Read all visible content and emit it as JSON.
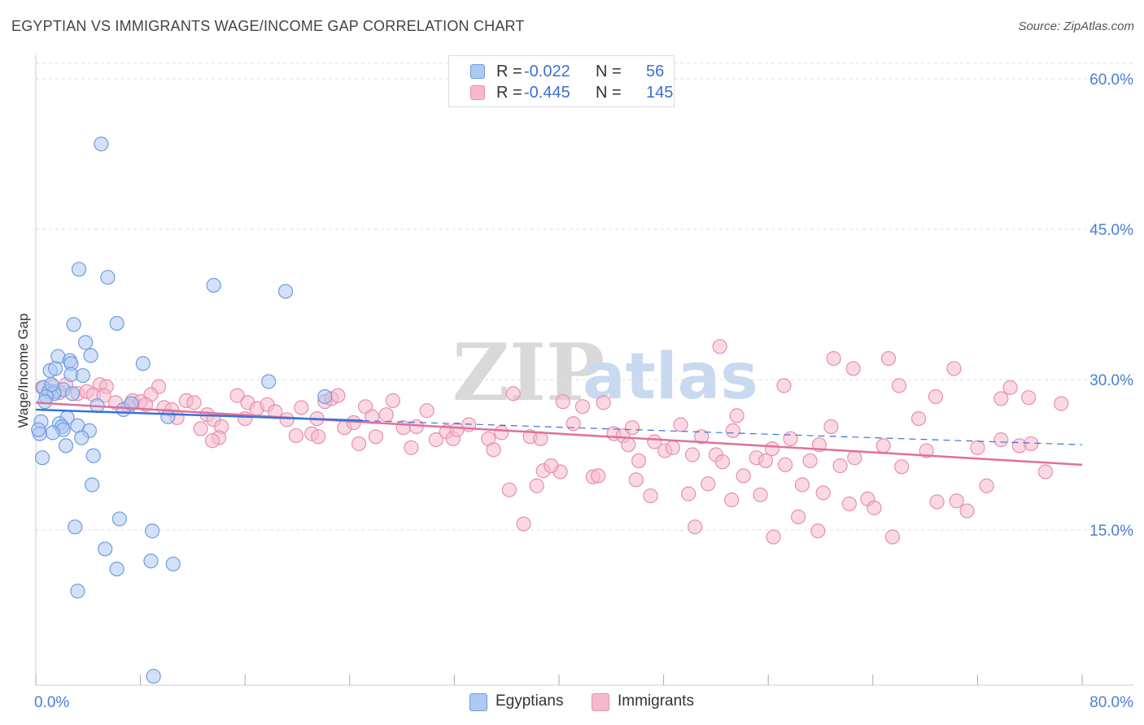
{
  "header": {
    "title": "EGYPTIAN VS IMMIGRANTS WAGE/INCOME GAP CORRELATION CHART",
    "source": "Source: ZipAtlas.com"
  },
  "watermark": {
    "zip": "ZIP",
    "atlas": "atlas"
  },
  "legend": {
    "rows": [
      {
        "r_label": "R =",
        "r_value": "-0.022",
        "n_label": "N =",
        "n_value": "56"
      },
      {
        "r_label": "R =",
        "r_value": "-0.445",
        "n_label": "N =",
        "n_value": "145"
      }
    ]
  },
  "bottom_legend": {
    "egyptians": "Egyptians",
    "immigrants": "Immigrants"
  },
  "colors": {
    "egyptians_fill": "#aec9f2",
    "egyptians_stroke": "#6f9be0",
    "egyptians_line": "#3a72d6",
    "immigrants_fill": "#f6b9cc",
    "immigrants_stroke": "#e78fae",
    "immigrants_line": "#e0709a",
    "tick_label": "#4a7fd4",
    "grid": "#dddddd"
  },
  "chart_data": {
    "type": "scatter",
    "title": "EGYPTIAN VS IMMIGRANTS WAGE/INCOME GAP CORRELATION CHART",
    "xlabel": "",
    "ylabel": "Wage/Income Gap",
    "xlim": [
      0,
      80
    ],
    "ylim": [
      0,
      60
    ],
    "x_tick_labels": [
      "0.0%",
      "80.0%"
    ],
    "y_ticks": [
      15,
      30,
      45,
      60
    ],
    "y_tick_labels": [
      "15.0%",
      "30.0%",
      "45.0%",
      "60.0%"
    ],
    "series": [
      {
        "name": "Egyptians",
        "r": -0.022,
        "n": 56,
        "trend": {
          "x0": 0,
          "y0": 27.0,
          "x1": 80,
          "y1": 23.5,
          "solid_until": 25
        },
        "points": [
          [
            5.0,
            53.5
          ],
          [
            3.3,
            41.0
          ],
          [
            5.5,
            40.2
          ],
          [
            13.6,
            39.4
          ],
          [
            19.1,
            38.8
          ],
          [
            2.9,
            35.5
          ],
          [
            6.2,
            35.6
          ],
          [
            3.8,
            33.7
          ],
          [
            4.2,
            32.4
          ],
          [
            1.7,
            32.3
          ],
          [
            2.6,
            31.9
          ],
          [
            2.7,
            31.6
          ],
          [
            8.2,
            31.6
          ],
          [
            1.1,
            30.9
          ],
          [
            1.5,
            31.1
          ],
          [
            2.7,
            30.5
          ],
          [
            3.6,
            30.4
          ],
          [
            17.8,
            29.8
          ],
          [
            0.6,
            29.2
          ],
          [
            1.0,
            28.8
          ],
          [
            1.4,
            28.8
          ],
          [
            2.1,
            29.0
          ],
          [
            1.4,
            28.6
          ],
          [
            0.8,
            28.3
          ],
          [
            2.8,
            28.6
          ],
          [
            22.1,
            28.3
          ],
          [
            4.7,
            27.4
          ],
          [
            6.7,
            27.0
          ],
          [
            7.3,
            27.6
          ],
          [
            10.1,
            26.3
          ],
          [
            2.4,
            26.2
          ],
          [
            1.8,
            25.6
          ],
          [
            0.4,
            25.8
          ],
          [
            2.0,
            25.3
          ],
          [
            3.2,
            25.4
          ],
          [
            2.1,
            25.0
          ],
          [
            4.1,
            24.9
          ],
          [
            1.3,
            24.7
          ],
          [
            0.3,
            24.6
          ],
          [
            3.5,
            24.2
          ],
          [
            2.3,
            23.4
          ],
          [
            4.4,
            22.4
          ],
          [
            0.5,
            22.2
          ],
          [
            4.3,
            19.5
          ],
          [
            6.4,
            16.1
          ],
          [
            3.0,
            15.3
          ],
          [
            8.9,
            14.9
          ],
          [
            5.3,
            13.1
          ],
          [
            8.8,
            11.9
          ],
          [
            10.5,
            11.6
          ],
          [
            6.2,
            11.1
          ],
          [
            3.2,
            8.9
          ],
          [
            9.0,
            0.4
          ],
          [
            0.2,
            25.0
          ],
          [
            0.7,
            27.8
          ],
          [
            1.2,
            29.5
          ]
        ]
      },
      {
        "name": "Immigrants",
        "r": -0.445,
        "n": 145,
        "trend": {
          "x0": 0,
          "y0": 27.7,
          "x1": 80,
          "y1": 21.5
        },
        "points": [
          [
            0.5,
            29.2
          ],
          [
            1.3,
            29.3
          ],
          [
            2.3,
            29.5
          ],
          [
            4.9,
            29.5
          ],
          [
            5.4,
            29.3
          ],
          [
            9.4,
            29.3
          ],
          [
            1.8,
            28.7
          ],
          [
            3.2,
            28.6
          ],
          [
            3.9,
            28.8
          ],
          [
            4.4,
            28.5
          ],
          [
            5.2,
            28.4
          ],
          [
            8.8,
            28.5
          ],
          [
            6.1,
            27.7
          ],
          [
            7.4,
            27.9
          ],
          [
            8.0,
            27.8
          ],
          [
            8.4,
            27.5
          ],
          [
            11.5,
            27.9
          ],
          [
            12.1,
            27.7
          ],
          [
            9.8,
            27.2
          ],
          [
            10.4,
            27.0
          ],
          [
            7.1,
            27.3
          ],
          [
            15.4,
            28.4
          ],
          [
            16.2,
            27.7
          ],
          [
            16.9,
            27.1
          ],
          [
            17.7,
            27.5
          ],
          [
            18.3,
            26.8
          ],
          [
            20.3,
            27.2
          ],
          [
            22.1,
            27.8
          ],
          [
            22.6,
            28.1
          ],
          [
            23.1,
            28.4
          ],
          [
            25.2,
            27.3
          ],
          [
            27.3,
            27.9
          ],
          [
            29.9,
            26.9
          ],
          [
            10.8,
            26.2
          ],
          [
            13.1,
            26.5
          ],
          [
            13.6,
            26.0
          ],
          [
            16.0,
            26.1
          ],
          [
            19.2,
            26.0
          ],
          [
            21.5,
            26.1
          ],
          [
            23.6,
            25.2
          ],
          [
            24.3,
            25.7
          ],
          [
            25.7,
            26.3
          ],
          [
            26.8,
            26.5
          ],
          [
            28.1,
            25.2
          ],
          [
            29.1,
            25.3
          ],
          [
            12.6,
            25.1
          ],
          [
            14.2,
            25.3
          ],
          [
            14.0,
            24.2
          ],
          [
            13.5,
            23.9
          ],
          [
            19.9,
            24.4
          ],
          [
            21.1,
            24.6
          ],
          [
            21.6,
            24.3
          ],
          [
            24.7,
            23.6
          ],
          [
            26.0,
            24.3
          ],
          [
            28.7,
            23.2
          ],
          [
            30.6,
            24.0
          ],
          [
            31.4,
            24.8
          ],
          [
            31.9,
            24.1
          ],
          [
            32.2,
            25.0
          ],
          [
            33.1,
            25.5
          ],
          [
            34.6,
            24.1
          ],
          [
            35.0,
            23.0
          ],
          [
            35.6,
            24.7
          ],
          [
            37.8,
            24.3
          ],
          [
            38.6,
            24.1
          ],
          [
            40.3,
            27.8
          ],
          [
            41.1,
            25.6
          ],
          [
            41.8,
            27.3
          ],
          [
            43.4,
            27.7
          ],
          [
            44.2,
            24.6
          ],
          [
            44.9,
            24.4
          ],
          [
            45.3,
            23.5
          ],
          [
            45.6,
            25.2
          ],
          [
            46.1,
            21.9
          ],
          [
            47.3,
            23.8
          ],
          [
            48.1,
            22.9
          ],
          [
            48.7,
            23.2
          ],
          [
            49.3,
            25.5
          ],
          [
            50.2,
            22.5
          ],
          [
            50.9,
            24.3
          ],
          [
            52.0,
            22.5
          ],
          [
            52.5,
            21.8
          ],
          [
            53.3,
            24.9
          ],
          [
            53.6,
            26.4
          ],
          [
            54.1,
            20.4
          ],
          [
            55.1,
            22.2
          ],
          [
            55.8,
            21.9
          ],
          [
            56.3,
            23.1
          ],
          [
            57.3,
            21.5
          ],
          [
            57.7,
            24.1
          ],
          [
            58.6,
            19.5
          ],
          [
            59.2,
            21.9
          ],
          [
            59.9,
            23.5
          ],
          [
            60.2,
            18.7
          ],
          [
            60.8,
            25.3
          ],
          [
            61.5,
            21.4
          ],
          [
            62.2,
            17.6
          ],
          [
            62.6,
            22.2
          ],
          [
            63.6,
            18.1
          ],
          [
            64.1,
            17.2
          ],
          [
            64.8,
            23.4
          ],
          [
            65.5,
            14.3
          ],
          [
            66.2,
            21.3
          ],
          [
            67.5,
            26.1
          ],
          [
            68.1,
            22.9
          ],
          [
            68.9,
            17.8
          ],
          [
            70.4,
            17.9
          ],
          [
            71.2,
            16.9
          ],
          [
            72.0,
            23.2
          ],
          [
            72.7,
            19.4
          ],
          [
            73.8,
            24.0
          ],
          [
            75.2,
            23.4
          ],
          [
            76.1,
            23.6
          ],
          [
            77.2,
            20.8
          ],
          [
            78.4,
            27.6
          ],
          [
            52.3,
            33.3
          ],
          [
            61.0,
            32.1
          ],
          [
            62.5,
            31.1
          ],
          [
            65.2,
            32.1
          ],
          [
            70.2,
            31.1
          ],
          [
            57.2,
            29.4
          ],
          [
            66.0,
            29.4
          ],
          [
            68.8,
            28.3
          ],
          [
            74.5,
            29.2
          ],
          [
            73.8,
            28.1
          ],
          [
            75.9,
            28.2
          ],
          [
            36.5,
            28.6
          ],
          [
            38.8,
            20.9
          ],
          [
            40.1,
            20.8
          ],
          [
            39.4,
            21.4
          ],
          [
            42.6,
            20.3
          ],
          [
            43.0,
            20.4
          ],
          [
            38.3,
            19.4
          ],
          [
            37.3,
            15.6
          ],
          [
            50.4,
            15.3
          ],
          [
            56.4,
            14.3
          ],
          [
            59.8,
            14.9
          ],
          [
            36.2,
            19.0
          ],
          [
            45.9,
            20.0
          ],
          [
            47.0,
            18.4
          ],
          [
            49.9,
            18.6
          ],
          [
            51.4,
            19.6
          ],
          [
            53.2,
            18.0
          ],
          [
            55.4,
            18.5
          ],
          [
            58.3,
            16.3
          ]
        ]
      }
    ]
  }
}
